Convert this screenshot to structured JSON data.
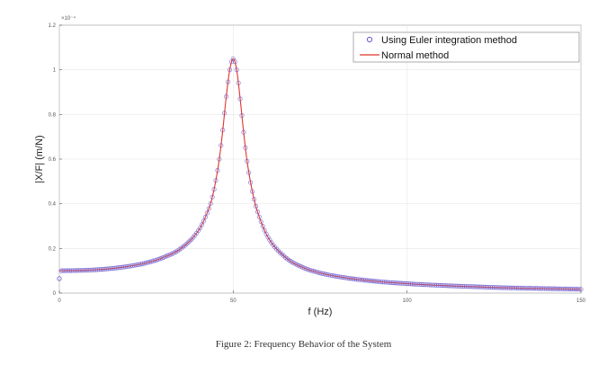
{
  "caption": "Figure 2: Frequency Behavior of the System",
  "colors": {
    "euler": "#6a5acd",
    "normal": "#e0352b",
    "axis": "#555555",
    "grid": "#e6e6e6"
  },
  "chart_data": {
    "type": "line",
    "xlabel": "f (Hz)",
    "ylabel": "|X/F| (m/N)",
    "y_exponent": "×10⁻⁴",
    "xlim": [
      0,
      150
    ],
    "ylim": [
      0,
      1.2
    ],
    "xticks": [
      0,
      50,
      100,
      150
    ],
    "yticks": [
      0,
      0.2,
      0.4,
      0.6,
      0.8,
      1,
      1.2
    ],
    "grid": true,
    "legend_position": "top-right",
    "series": [
      {
        "name": "Using Euler integration method",
        "style": "markers",
        "color": "#6a5acd",
        "x": [
          0,
          1,
          5,
          10,
          15,
          20,
          25,
          30,
          35,
          40,
          42,
          44,
          46,
          47,
          48,
          49,
          50,
          51,
          52,
          53,
          54,
          56,
          58,
          60,
          65,
          70,
          75,
          80,
          90,
          100,
          110,
          120,
          130,
          140,
          150
        ],
        "y": [
          0.065,
          0.1,
          0.101,
          0.104,
          0.11,
          0.12,
          0.135,
          0.16,
          0.2,
          0.28,
          0.34,
          0.43,
          0.6,
          0.73,
          0.88,
          1.0,
          1.05,
          1.0,
          0.87,
          0.72,
          0.59,
          0.42,
          0.32,
          0.25,
          0.16,
          0.115,
          0.09,
          0.074,
          0.054,
          0.042,
          0.034,
          0.028,
          0.023,
          0.02,
          0.017
        ]
      },
      {
        "name": "Normal method",
        "style": "line",
        "color": "#e0352b",
        "x": [
          0,
          5,
          10,
          15,
          20,
          25,
          30,
          35,
          40,
          42,
          44,
          46,
          47,
          48,
          49,
          50,
          51,
          52,
          53,
          54,
          56,
          58,
          60,
          65,
          70,
          75,
          80,
          90,
          100,
          110,
          120,
          130,
          140,
          150
        ],
        "y": [
          0.1,
          0.101,
          0.104,
          0.11,
          0.12,
          0.135,
          0.16,
          0.2,
          0.28,
          0.34,
          0.43,
          0.6,
          0.73,
          0.88,
          1.0,
          1.05,
          1.0,
          0.87,
          0.72,
          0.59,
          0.42,
          0.32,
          0.25,
          0.16,
          0.115,
          0.09,
          0.074,
          0.054,
          0.042,
          0.034,
          0.028,
          0.023,
          0.02,
          0.017
        ]
      }
    ]
  }
}
